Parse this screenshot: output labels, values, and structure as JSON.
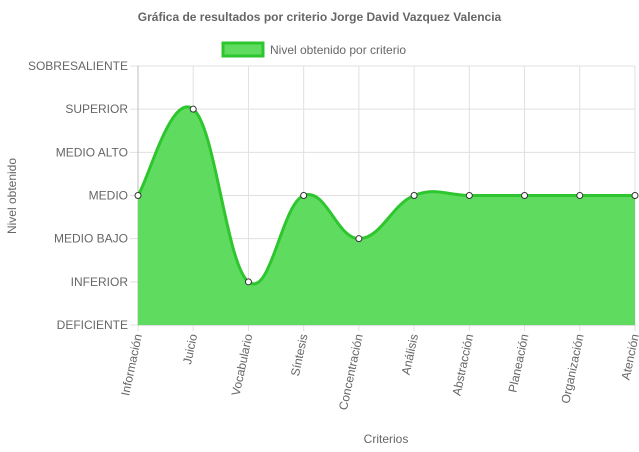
{
  "chart_data": {
    "type": "area",
    "title": "Gráfica de resultados por criterio Jorge David  Vazquez  Valencia",
    "xlabel": "Criterios",
    "ylabel": "Nivel obtenido",
    "y_levels": [
      "DEFICIENTE",
      "INFERIOR",
      "MEDIO BAJO",
      "MEDIO",
      "MEDIO ALTO",
      "SUPERIOR",
      "SOBRESALIENTE"
    ],
    "ylim": [
      0,
      6
    ],
    "categories": [
      "Información",
      "Juicio",
      "Vocabulario",
      "Síntesis",
      "Concentración",
      "Análisis",
      "Abstracción",
      "Planeación",
      "Organización",
      "Atención"
    ],
    "series": [
      {
        "name": "Nivel obtenido por criterio",
        "values": [
          3,
          5,
          1,
          3,
          2,
          3,
          3,
          3,
          3,
          3
        ],
        "color": "#2ec62e",
        "fill": "#5fdc5f"
      }
    ],
    "legend_position": "top",
    "grid": true
  }
}
